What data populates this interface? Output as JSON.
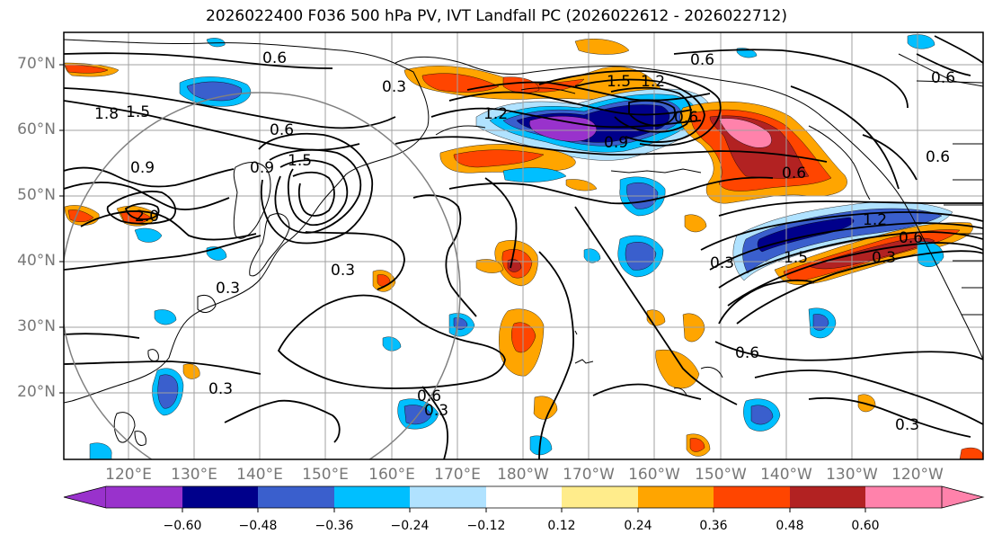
{
  "title": "2026022400 F036 500 hPa PV, IVT Landfall PC (2026022612 - 2026022712)",
  "lat_labels": [
    "70°N",
    "60°N",
    "50°N",
    "40°N",
    "30°N",
    "20°N"
  ],
  "lon_labels": [
    "120°E",
    "130°E",
    "140°E",
    "150°E",
    "160°E",
    "170°E",
    "180°W",
    "170°W",
    "160°W",
    "150°W",
    "140°W",
    "130°W",
    "120°W"
  ],
  "contour_labels": [
    "0.6",
    "0.3",
    "0.6",
    "1.5",
    "1.8",
    "1.5",
    "0.6",
    "0.9",
    "1.5",
    "0.9",
    "2.0",
    "0.3",
    "0.3",
    "0.3",
    "0.6",
    "0.3",
    "1.2",
    "1.2",
    "0.6",
    "0.9",
    "0.6",
    "1.5",
    "1.2",
    "0.6",
    "0.3",
    "0.6",
    "0.6",
    "0.3",
    "0.3",
    "0.6"
  ],
  "colorbar": {
    "ticks": [
      "−0.60",
      "−0.48",
      "−0.36",
      "−0.24",
      "−0.12",
      "0.12",
      "0.24",
      "0.36",
      "0.48",
      "0.60"
    ],
    "colors": [
      "#9932cc",
      "#00008b",
      "#3a5fcd",
      "#00bfff",
      "#b0e2ff",
      "#ffffff",
      "#ffec8b",
      "#ffa500",
      "#ff4500",
      "#b22222",
      "#ff82ab"
    ]
  },
  "colors": {
    "purple": "#9932cc",
    "navy": "#00008b",
    "blue": "#3a5fcd",
    "cyan": "#00bfff",
    "lightblue": "#b0e2ff",
    "yellow": "#ffec8b",
    "orange": "#ffa500",
    "red": "#ff4500",
    "darkred": "#b22222",
    "pink": "#ff82ab"
  }
}
